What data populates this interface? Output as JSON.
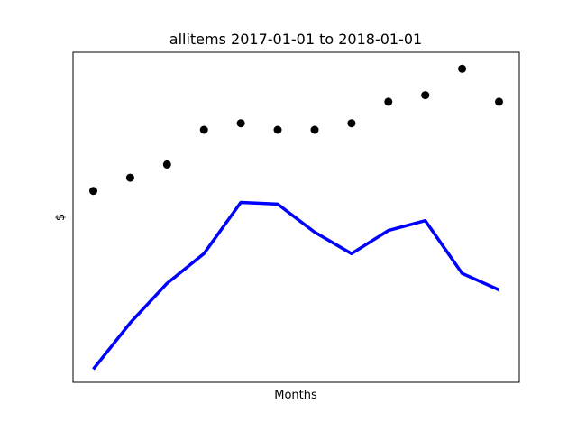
{
  "chart_data": {
    "type": "line",
    "title": "allitems 2017-01-01 to 2018-01-01",
    "xlabel": "Months",
    "ylabel": "$",
    "x_ticks_shown": false,
    "y_ticks_shown": false,
    "grid": false,
    "legend": "none",
    "xlim": [
      0.45,
      12.55
    ],
    "ylim": [
      0,
      100
    ],
    "x": [
      1,
      2,
      3,
      4,
      5,
      6,
      7,
      8,
      9,
      10,
      11,
      12
    ],
    "series": [
      {
        "kind": "scatter",
        "color": "#000000",
        "values": [
          58,
          62,
          66,
          76.5,
          78.5,
          76.5,
          76.5,
          78.5,
          85,
          87,
          95,
          85
        ]
      },
      {
        "kind": "line",
        "color": "#0000ff",
        "values": [
          4,
          18,
          30,
          39,
          54.5,
          54,
          45.5,
          39,
          46,
          49,
          33,
          28
        ]
      }
    ]
  }
}
